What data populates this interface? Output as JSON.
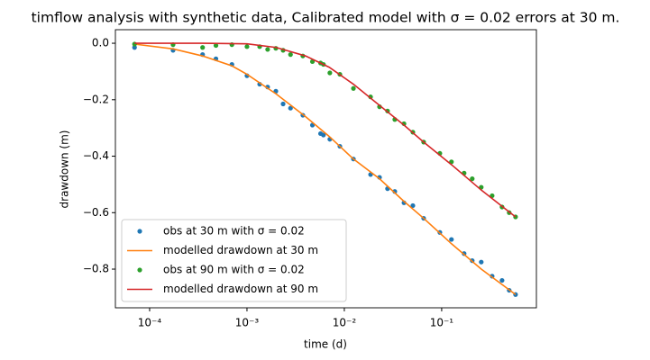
{
  "chart_data": {
    "type": "line",
    "title": "timflow analysis with synthetic data, Calibrated model with σ = 0.02 errors at 30 m.",
    "xlabel": "time (d)",
    "ylabel": "drawdown (m)",
    "xscale": "log",
    "legend": "lower left",
    "xlim": [
      4.45e-05,
      0.94
    ],
    "ylim": [
      -0.937,
      0.048
    ],
    "xticks": [
      {
        "value": 0.0001,
        "label": "10⁻⁴"
      },
      {
        "value": 0.001,
        "label": "10⁻³"
      },
      {
        "value": 0.01,
        "label": "10⁻²"
      },
      {
        "value": 0.1,
        "label": "10⁻¹"
      }
    ],
    "yticks": [
      {
        "value": 0,
        "label": "0.0"
      },
      {
        "value": -0.2,
        "label": "−0.2"
      },
      {
        "value": -0.4,
        "label": "−0.4"
      },
      {
        "value": -0.6,
        "label": "−0.6"
      },
      {
        "value": -0.8,
        "label": "−0.8"
      }
    ],
    "series": [
      {
        "name": "obs at 30 m with σ = 0.02",
        "color": "#1f77b4",
        "style": "points",
        "x": [
          7e-05,
          0.000174,
          0.00035,
          0.00048,
          0.0007,
          0.001,
          0.00135,
          0.00163,
          0.00198,
          0.00235,
          0.0028,
          0.00375,
          0.0047,
          0.0057,
          0.0061,
          0.0071,
          0.009,
          0.0124,
          0.0186,
          0.023,
          0.0278,
          0.033,
          0.041,
          0.0506,
          0.0653,
          0.0958,
          0.126,
          0.17,
          0.206,
          0.255,
          0.33,
          0.417,
          0.494,
          0.574
        ],
        "values": [
          -0.015,
          -0.025,
          -0.04,
          -0.055,
          -0.075,
          -0.115,
          -0.145,
          -0.155,
          -0.17,
          -0.215,
          -0.23,
          -0.255,
          -0.29,
          -0.32,
          -0.325,
          -0.34,
          -0.365,
          -0.41,
          -0.465,
          -0.475,
          -0.515,
          -0.525,
          -0.565,
          -0.575,
          -0.62,
          -0.67,
          -0.695,
          -0.745,
          -0.77,
          -0.775,
          -0.825,
          -0.84,
          -0.875,
          -0.89
        ]
      },
      {
        "name": "modelled drawdown at 30 m",
        "color": "#ff7f0e",
        "style": "line",
        "x": [
          7e-05,
          0.000174,
          0.00035,
          0.0007,
          0.001,
          0.002,
          0.004,
          0.007,
          0.0124,
          0.023,
          0.041,
          0.0653,
          0.126,
          0.255,
          0.574
        ],
        "values": [
          -0.003,
          -0.02,
          -0.045,
          -0.08,
          -0.11,
          -0.18,
          -0.26,
          -0.33,
          -0.41,
          -0.48,
          -0.56,
          -0.62,
          -0.71,
          -0.8,
          -0.89
        ]
      },
      {
        "name": "obs at 90 m with σ = 0.02",
        "color": "#2ca02c",
        "style": "points",
        "x": [
          7e-05,
          0.000174,
          0.00035,
          0.00048,
          0.0007,
          0.001,
          0.00135,
          0.00163,
          0.00198,
          0.00235,
          0.0028,
          0.00375,
          0.0047,
          0.0057,
          0.0061,
          0.0071,
          0.009,
          0.0124,
          0.0186,
          0.023,
          0.0278,
          0.033,
          0.041,
          0.0506,
          0.0653,
          0.0958,
          0.126,
          0.17,
          0.206,
          0.255,
          0.33,
          0.417,
          0.494,
          0.574
        ],
        "values": [
          -0.003,
          -0.005,
          -0.015,
          -0.008,
          -0.005,
          -0.012,
          -0.012,
          -0.022,
          -0.018,
          -0.025,
          -0.04,
          -0.045,
          -0.065,
          -0.07,
          -0.075,
          -0.105,
          -0.11,
          -0.16,
          -0.19,
          -0.225,
          -0.24,
          -0.27,
          -0.285,
          -0.315,
          -0.35,
          -0.39,
          -0.42,
          -0.46,
          -0.48,
          -0.51,
          -0.54,
          -0.58,
          -0.6,
          -0.615
        ]
      },
      {
        "name": "modelled drawdown at 90 m",
        "color": "#d62728",
        "style": "line",
        "x": [
          7e-05,
          0.00035,
          0.001,
          0.002,
          0.004,
          0.007,
          0.0124,
          0.023,
          0.041,
          0.0653,
          0.126,
          0.255,
          0.574
        ],
        "values": [
          0,
          0,
          -0.002,
          -0.015,
          -0.045,
          -0.085,
          -0.145,
          -0.22,
          -0.29,
          -0.35,
          -0.43,
          -0.52,
          -0.615
        ]
      }
    ]
  }
}
